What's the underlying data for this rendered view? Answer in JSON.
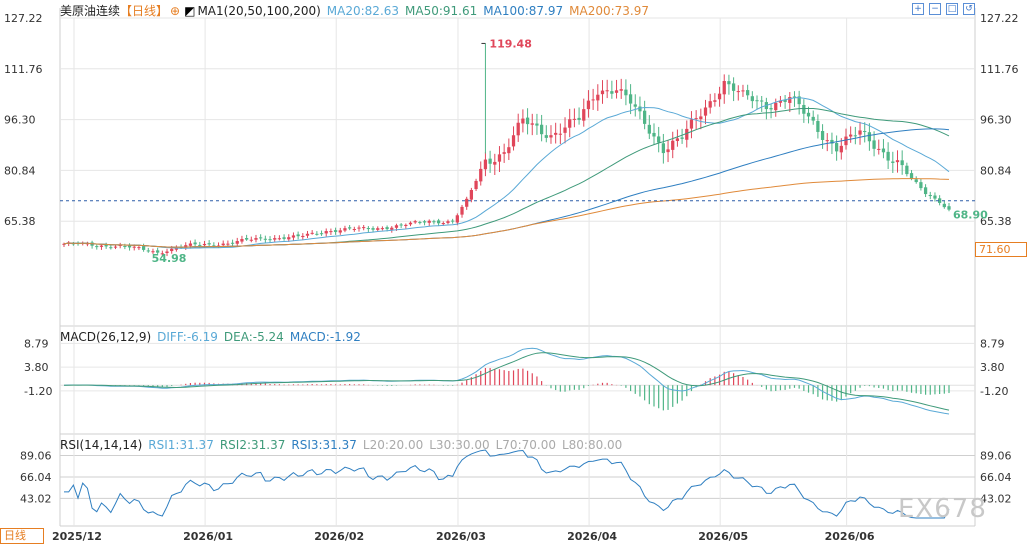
{
  "header": {
    "symbol": "美原油连续",
    "period": "【日线】",
    "ma_label": "MA1(20,50,100,200)",
    "ma20": "MA20:82.63",
    "ma50": "MA50:91.61",
    "ma100": "MA100:87.97",
    "ma200": "MA200:73.97"
  },
  "macd_header": {
    "label": "MACD(26,12,9)",
    "diff": "DIFF:-6.19",
    "dea": "DEA:-5.24",
    "macd": "MACD:-1.92"
  },
  "rsi_header": {
    "label": "RSI(14,14,14)",
    "rsi1": "RSI1:31.37",
    "rsi2": "RSI2:31.37",
    "rsi3": "RSI3:31.37",
    "l20": "L20:20.00",
    "l30": "L30:30.00",
    "l70": "L70:70.00",
    "l80": "L80:80.00"
  },
  "colors": {
    "up": "#e0465a",
    "down": "#4fb587",
    "ma20": "#5aa9d6",
    "ma50": "#3f9a7a",
    "ma100": "#2f7fc1",
    "ma200": "#e08a3a",
    "grid": "#e6e6e6"
  },
  "current_price_label": "71.60",
  "watermark": "EX678",
  "period_tab": "日线",
  "icons": [
    "zoom-in-icon",
    "zoom-out-icon",
    "fullscreen-icon",
    "reset-icon"
  ],
  "chart_data": [
    {
      "type": "candlestick",
      "title": "美原油连续",
      "y_ticks": [
        "127.22",
        "111.76",
        "96.30",
        "80.84",
        "65.38"
      ],
      "ylim": [
        49.92,
        127.22
      ],
      "x_ticks": [
        "2025/12",
        "2026/01",
        "2026/02",
        "2026/03",
        "2026/04",
        "2026/05",
        "2026/06"
      ],
      "annotations": {
        "max": "119.48",
        "min": "54.98",
        "last": "68.90"
      },
      "current_price": 71.6,
      "anchors": [
        {
          "i": 0,
          "c": 58.5
        },
        {
          "i": 12,
          "c": 57.8
        },
        {
          "i": 20,
          "c": 56.0
        },
        {
          "i": 28,
          "c": 58.2
        },
        {
          "i": 35,
          "c": 58.6
        },
        {
          "i": 42,
          "c": 60.2
        },
        {
          "i": 50,
          "c": 60.5
        },
        {
          "i": 56,
          "c": 62.5
        },
        {
          "i": 60,
          "c": 62.8
        },
        {
          "i": 66,
          "c": 63.2
        },
        {
          "i": 72,
          "c": 64.0
        },
        {
          "i": 78,
          "c": 65.5
        },
        {
          "i": 83,
          "c": 65.2
        },
        {
          "i": 86,
          "c": 71.5
        },
        {
          "i": 90,
          "c": 84.0
        },
        {
          "i": 94,
          "c": 86.5
        },
        {
          "i": 98,
          "c": 95.5
        },
        {
          "i": 104,
          "c": 92.0
        },
        {
          "i": 110,
          "c": 96.0
        },
        {
          "i": 114,
          "c": 105.5
        },
        {
          "i": 118,
          "c": 106.0
        },
        {
          "i": 121,
          "c": 101.0
        },
        {
          "i": 124,
          "c": 95.0
        },
        {
          "i": 128,
          "c": 88.0
        },
        {
          "i": 132,
          "c": 90.5
        },
        {
          "i": 136,
          "c": 98.0
        },
        {
          "i": 141,
          "c": 108.0
        },
        {
          "i": 145,
          "c": 103.0
        },
        {
          "i": 150,
          "c": 101.0
        },
        {
          "i": 155,
          "c": 103.0
        },
        {
          "i": 158,
          "c": 98.0
        },
        {
          "i": 162,
          "c": 92.0
        },
        {
          "i": 165,
          "c": 88.0
        },
        {
          "i": 170,
          "c": 92.0
        },
        {
          "i": 174,
          "c": 88.0
        },
        {
          "i": 178,
          "c": 83.0
        },
        {
          "i": 181,
          "c": 78.0
        },
        {
          "i": 184,
          "c": 74.0
        },
        {
          "i": 187,
          "c": 71.5
        },
        {
          "i": 189,
          "c": 68.9
        }
      ],
      "ma_levels": {
        "ma20": 82.63,
        "ma50": 91.61,
        "ma100": 87.97,
        "ma200": 73.97
      }
    },
    {
      "type": "macd",
      "title": "MACD(26,12,9)",
      "y_ticks": [
        "8.79",
        "3.80",
        "-1.20"
      ],
      "ylim": [
        -9.0,
        9.5
      ],
      "diff": -6.19,
      "dea": -5.24,
      "macd": -1.92
    },
    {
      "type": "rsi",
      "title": "RSI(14,14,14)",
      "y_ticks": [
        "89.06",
        "66.04",
        "43.02"
      ],
      "ylim": [
        22.0,
        95.0
      ],
      "rsi": 31.37
    }
  ]
}
